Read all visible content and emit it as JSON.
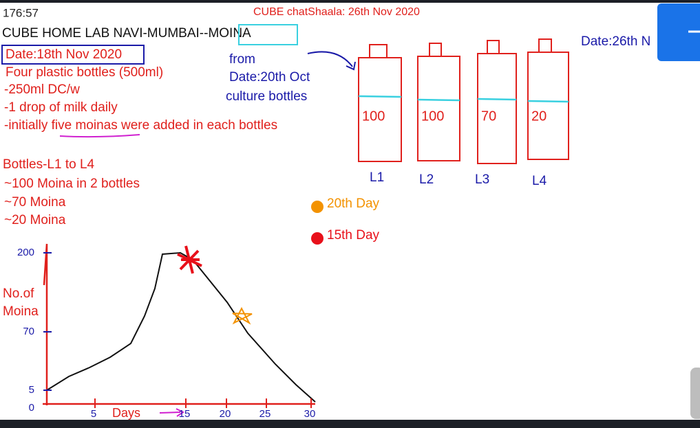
{
  "status": {
    "time": "176:57"
  },
  "header": {
    "session": "CUBE chatShaala: 26th Nov 2020",
    "title": "CUBE HOME LAB NAVI-MUMBAI--MOINA",
    "date": "Date:18th Nov 2020",
    "right_date": "Date:26th N"
  },
  "notes": [
    "Four plastic bottles (500ml)",
    "-250ml DC/w",
    "-1 drop of milk daily",
    "-initially five moinas were added in each bottles"
  ],
  "source": [
    "from",
    "Date:20th Oct",
    "culture bottles"
  ],
  "bottles": [
    {
      "label": "L1",
      "count": 100
    },
    {
      "label": "L2",
      "count": 100
    },
    {
      "label": "L3",
      "count": 70
    },
    {
      "label": "L4",
      "count": 20
    }
  ],
  "summary": [
    "Bottles-L1 to L4",
    "~100 Moina in 2 bottles",
    "~70 Moina",
    "~20 Moina"
  ],
  "legend": [
    {
      "label": "20th Day",
      "color": "#f39200"
    },
    {
      "label": "15th Day",
      "color": "#e8101a"
    }
  ],
  "graph": {
    "y_label": [
      "No.of",
      "Moina"
    ],
    "y_ticks": [
      200,
      70,
      5,
      0
    ],
    "x_ticks": [
      5,
      15,
      20,
      25,
      30
    ],
    "x_label": "Days"
  }
}
